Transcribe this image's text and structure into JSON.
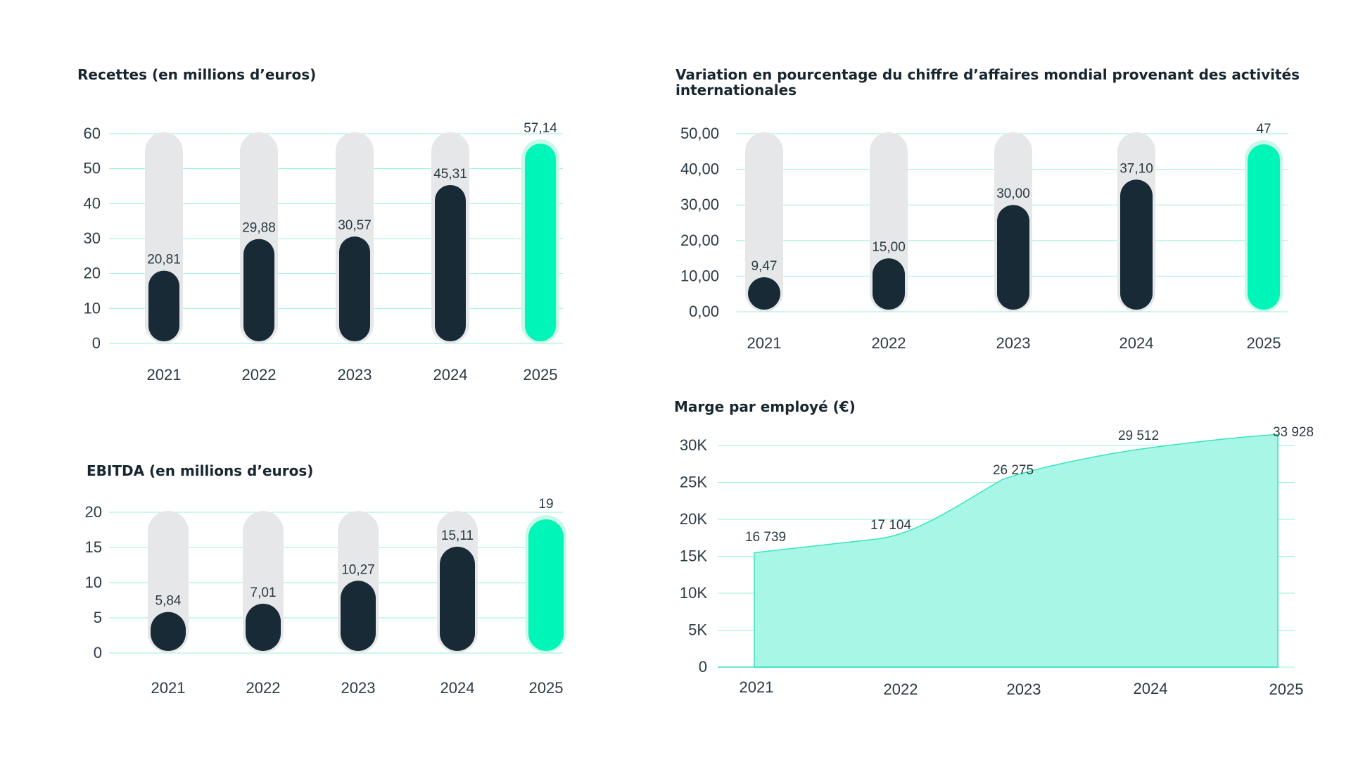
{
  "colors": {
    "dark_bar": "#172a36",
    "highlight_bar": "#00f5b8",
    "highlight_halo": "#c9f7e8",
    "track": "#e5e7e9",
    "grid": "#9af2d7",
    "area_fill": "#a8f7e6",
    "area_stroke": "#38e3bd"
  },
  "chart_data": [
    {
      "id": "revenue",
      "type": "bar",
      "title": "Recettes (en millions d’euros)",
      "categories": [
        "2021",
        "2022",
        "2023",
        "2024",
        "2025"
      ],
      "values": [
        20.81,
        29.88,
        30.57,
        45.31,
        57.14
      ],
      "value_labels": [
        "20,81",
        "29,88",
        "30,57",
        "45,31",
        "57,14"
      ],
      "highlight_index": 4,
      "ylim": [
        0,
        60
      ],
      "yticks": [
        0,
        10,
        20,
        30,
        40,
        50,
        60
      ],
      "ytick_labels": [
        "0",
        "10",
        "20",
        "30",
        "40",
        "50",
        "60"
      ],
      "grid": true
    },
    {
      "id": "international",
      "type": "bar",
      "title": "Variation en pourcentage du chiffre d’affaires mondial provenant des activités internationales",
      "categories": [
        "2021",
        "2022",
        "2023",
        "2024",
        "2025"
      ],
      "values": [
        9.47,
        15.0,
        30.0,
        37.1,
        47
      ],
      "value_labels": [
        "9,47",
        "15,00",
        "30,00",
        "37,10",
        "47"
      ],
      "highlight_index": 4,
      "ylim": [
        0,
        50
      ],
      "yticks": [
        0,
        10,
        20,
        30,
        40,
        50
      ],
      "ytick_labels": [
        "0,00",
        "10,00",
        "20,00",
        "30,00",
        "40,00",
        "50,00"
      ],
      "grid": true
    },
    {
      "id": "ebitda",
      "type": "bar",
      "title": "EBITDA (en millions d’euros)",
      "categories": [
        "2021",
        "2022",
        "2023",
        "2024",
        "2025"
      ],
      "values": [
        5.84,
        7.01,
        10.27,
        15.11,
        19
      ],
      "value_labels": [
        "5,84",
        "7,01",
        "10,27",
        "15,11",
        "19"
      ],
      "highlight_index": 4,
      "ylim": [
        0,
        20
      ],
      "yticks": [
        0,
        5,
        10,
        15,
        20
      ],
      "ytick_labels": [
        "0",
        "5",
        "10",
        "15",
        "20"
      ],
      "grid": true
    },
    {
      "id": "margin",
      "type": "area",
      "title": "Marge par employé (€)",
      "categories": [
        "2021",
        "2022",
        "2023",
        "2024",
        "2025"
      ],
      "values": [
        16739,
        17104,
        26275,
        29512,
        33928
      ],
      "value_labels": [
        "16 739",
        "17 104",
        "26 275",
        "29 512",
        "33 928"
      ],
      "ylim": [
        0,
        30000
      ],
      "yticks": [
        0,
        5000,
        10000,
        15000,
        20000,
        25000,
        30000
      ],
      "ytick_labels": [
        "0",
        "5K",
        "10K",
        "15K",
        "20K",
        "25K",
        "30K"
      ],
      "grid": true
    }
  ]
}
